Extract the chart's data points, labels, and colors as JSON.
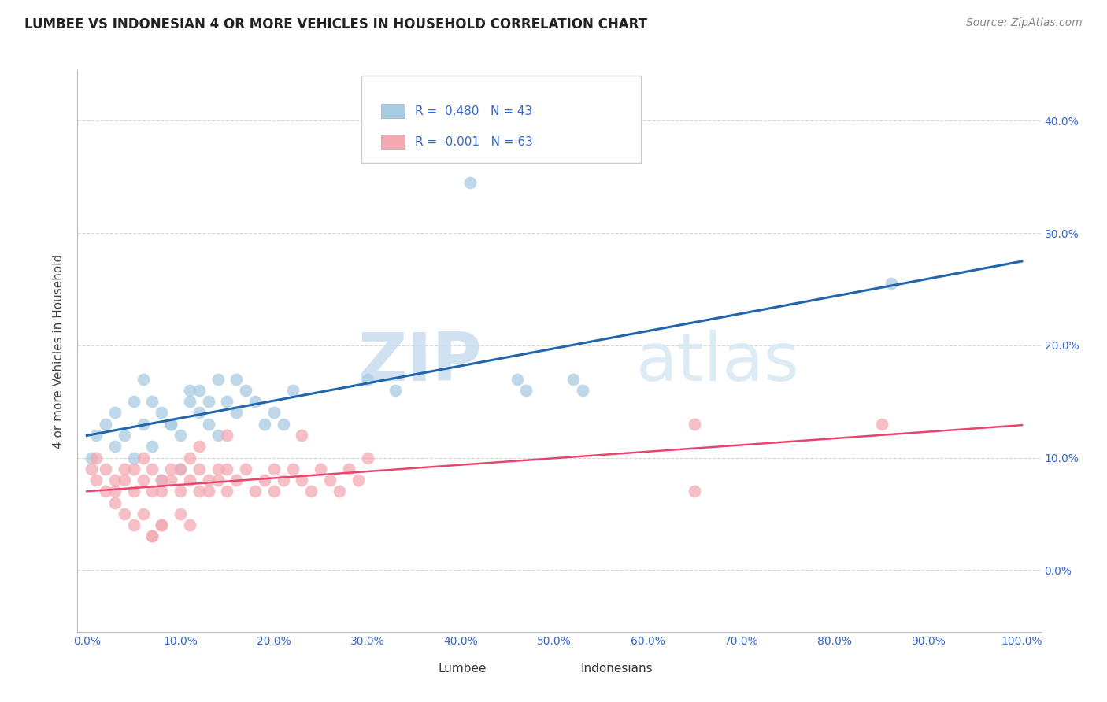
{
  "title": "LUMBEE VS INDONESIAN 4 OR MORE VEHICLES IN HOUSEHOLD CORRELATION CHART",
  "source": "Source: ZipAtlas.com",
  "ylabel": "4 or more Vehicles in Household",
  "watermark_zip": "ZIP",
  "watermark_atlas": "atlas",
  "lumbee_R": 0.48,
  "lumbee_N": 43,
  "indonesian_R": -0.001,
  "indonesian_N": 63,
  "xlim": [
    -0.01,
    1.02
  ],
  "ylim": [
    -0.055,
    0.445
  ],
  "xticks": [
    0.0,
    0.1,
    0.2,
    0.3,
    0.4,
    0.5,
    0.6,
    0.7,
    0.8,
    0.9,
    1.0
  ],
  "xticklabels": [
    "0.0%",
    "10.0%",
    "20.0%",
    "30.0%",
    "40.0%",
    "50.0%",
    "60.0%",
    "70.0%",
    "80.0%",
    "90.0%",
    "100.0%"
  ],
  "yticks": [
    0.0,
    0.1,
    0.2,
    0.3,
    0.4
  ],
  "yticklabels_left": [
    "",
    "",
    "",
    "",
    ""
  ],
  "yticklabels_right": [
    "0.0%",
    "10.0%",
    "20.0%",
    "30.0%",
    "40.0%"
  ],
  "lumbee_color": "#a8cce4",
  "indonesian_color": "#f4a9b2",
  "lumbee_line_color": "#2166ac",
  "indonesian_line_color": "#e8446e",
  "grid_color": "#cccccc",
  "background_color": "#ffffff",
  "legend_text_color": "#3366cc",
  "legend_label_color": "#333333",
  "title_fontsize": 12,
  "axis_label_fontsize": 11,
  "tick_fontsize": 10,
  "legend_fontsize": 11,
  "source_fontsize": 10
}
